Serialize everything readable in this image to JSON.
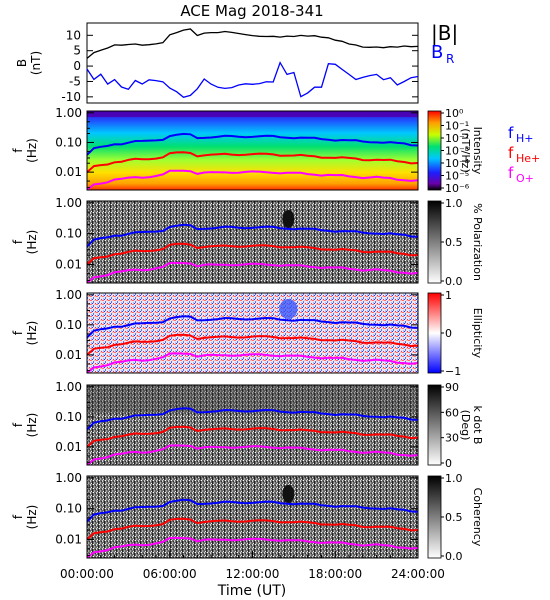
{
  "title": "ACE Mag 2018-341",
  "xlabel": "Time (UT)",
  "xticks": [
    "00:00:00",
    "06:00:00",
    "12:00:00",
    "18:00:00",
    "24:00:00"
  ],
  "colors": {
    "B": "#000000",
    "BR": "#0000ff",
    "fH": "#0000ff",
    "fHe": "#ff0000",
    "fO": "#ff00ff"
  },
  "chart_data": [
    {
      "type": "line",
      "panel": "magnetic field",
      "ylabel_line1": "B",
      "ylabel_line2": "(nT)",
      "ylim": [
        -12,
        14
      ],
      "yticks": [
        -10,
        -5,
        0,
        5,
        10
      ],
      "x_hours": [
        0,
        0.5,
        1,
        1.5,
        2,
        2.5,
        3,
        3.5,
        4,
        4.5,
        5,
        5.5,
        6,
        6.5,
        7,
        7.5,
        8,
        8.5,
        9,
        9.5,
        10,
        10.5,
        11,
        11.5,
        12,
        12.5,
        13,
        13.5,
        14,
        14.5,
        15,
        15.5,
        16,
        16.5,
        17,
        17.5,
        18,
        18.5,
        19,
        19.5,
        20,
        20.5,
        21,
        21.5,
        22,
        22.5,
        23,
        23.5,
        24
      ],
      "series": [
        {
          "name": "|B|",
          "values": [
            2.5,
            4.0,
            4.5,
            5.0,
            6.0,
            6.0,
            6.5,
            7.0,
            7.0,
            7.5,
            8.0,
            8.5,
            11.0,
            11.5,
            12.0,
            12.0,
            9.5,
            10.0,
            10.0,
            10.0,
            10.5,
            10.5,
            10.5,
            10.5,
            10.5,
            10.5,
            10.5,
            10.5,
            10.0,
            10.0,
            9.5,
            9.5,
            9.0,
            9.0,
            8.5,
            8.5,
            8.0,
            8.0,
            7.5,
            7.5,
            7.0,
            7.0,
            7.0,
            6.5,
            6.5,
            6.0,
            6.0,
            5.5,
            5.5
          ]
        },
        {
          "name": "B",
          "label_sub": "R",
          "values": [
            -1.0,
            -4.0,
            -2.0,
            -5.0,
            -3.5,
            -6.0,
            -7.0,
            -4.5,
            -6.0,
            -5.0,
            -5.5,
            -6.0,
            -8.0,
            -9.0,
            -10.5,
            -9.5,
            -7.0,
            -3.5,
            -5.0,
            -6.0,
            -6.5,
            -6.5,
            -6.0,
            -6.0,
            -6.5,
            -6.5,
            -6.0,
            -6.0,
            0.5,
            -3.0,
            -2.0,
            -9.5,
            -8.0,
            -6.0,
            -6.0,
            1.5,
            1.0,
            -1.0,
            -3.0,
            -5.0,
            -4.5,
            -4.0,
            -3.5,
            -5.0,
            -4.0,
            -6.0,
            -4.5,
            -3.0,
            -2.5
          ]
        }
      ]
    },
    {
      "type": "heatmap",
      "panel": "intensity",
      "ylabel_line1": "f",
      "ylabel_line2": "(Hz)",
      "yscale": "log",
      "ylim": [
        0.003,
        1.1
      ],
      "yticks": [
        "1.00",
        "0.10",
        "0.01"
      ],
      "colorbar_label_line1": "Intensity",
      "colorbar_label_line2": "(nT²/Hz)",
      "colorbar_ticks": [
        "10⁰",
        "10⁻¹",
        "10⁻²",
        "10⁻³",
        "10⁻⁴",
        "10⁻⁵",
        "10⁻⁶"
      ],
      "colormap": "rainbow",
      "legend": [
        "f",
        "f",
        "f"
      ],
      "legend_subs": [
        "H+",
        "He+",
        "O+"
      ]
    },
    {
      "type": "heatmap",
      "panel": "polarization",
      "ylabel_line1": "f",
      "ylabel_line2": "(Hz)",
      "yscale": "log",
      "yticks": [
        "1.00",
        "0.10",
        "0.01"
      ],
      "colorbar_label": "% Polarization",
      "colorbar_ticks": [
        "1.0",
        "0.5",
        "0.0"
      ],
      "colormap": "gray"
    },
    {
      "type": "heatmap",
      "panel": "ellipticity",
      "ylabel_line1": "f",
      "ylabel_line2": "(Hz)",
      "yscale": "log",
      "yticks": [
        "1.00",
        "0.10",
        "0.01"
      ],
      "colorbar_label": "Ellipticity",
      "colorbar_ticks": [
        "1",
        "0",
        "−1"
      ],
      "colormap": "blue-white-red"
    },
    {
      "type": "heatmap",
      "panel": "k dot B",
      "ylabel_line1": "f",
      "ylabel_line2": "(Hz)",
      "yscale": "log",
      "yticks": [
        "1.00",
        "0.10",
        "0.01"
      ],
      "colorbar_label_line1": "k dot B",
      "colorbar_label_line2": "(Deg)",
      "colorbar_ticks": [
        "90",
        "60",
        "30",
        "0"
      ],
      "colormap": "gray"
    },
    {
      "type": "heatmap",
      "panel": "coherency",
      "ylabel_line1": "f",
      "ylabel_line2": "(Hz)",
      "yscale": "log",
      "yticks": [
        "1.00",
        "0.10",
        "0.01"
      ],
      "colorbar_label": "Coherency",
      "colorbar_ticks": [
        "1.0",
        "0.5",
        "0.0"
      ],
      "colormap": "gray"
    },
    {
      "type": "line",
      "panel": "ion cyclotron frequencies (overlaid on panels 2–6)",
      "yscale": "log",
      "x_hours": [
        0,
        0.5,
        1,
        1.5,
        2,
        2.5,
        3,
        3.5,
        4,
        4.5,
        5,
        5.5,
        6,
        6.5,
        7,
        7.5,
        8,
        8.5,
        9,
        9.5,
        10,
        10.5,
        11,
        11.5,
        12,
        12.5,
        13,
        13.5,
        14,
        14.5,
        15,
        15.5,
        16,
        16.5,
        17,
        17.5,
        18,
        18.5,
        19,
        19.5,
        20,
        20.5,
        21,
        21.5,
        22,
        22.5,
        23,
        23.5,
        24
      ],
      "series": [
        {
          "name": "f H+",
          "values": [
            0.038,
            0.061,
            0.068,
            0.076,
            0.091,
            0.091,
            0.099,
            0.107,
            0.107,
            0.114,
            0.122,
            0.13,
            0.168,
            0.175,
            0.183,
            0.183,
            0.145,
            0.152,
            0.152,
            0.152,
            0.16,
            0.16,
            0.16,
            0.16,
            0.16,
            0.16,
            0.16,
            0.16,
            0.152,
            0.152,
            0.145,
            0.145,
            0.137,
            0.137,
            0.13,
            0.13,
            0.122,
            0.122,
            0.114,
            0.114,
            0.107,
            0.107,
            0.107,
            0.099,
            0.099,
            0.091,
            0.091,
            0.084,
            0.084
          ]
        },
        {
          "name": "f He+",
          "values": [
            0.0095,
            0.0152,
            0.0171,
            0.019,
            0.0228,
            0.0228,
            0.0247,
            0.0266,
            0.0266,
            0.0285,
            0.0304,
            0.0323,
            0.0419,
            0.0438,
            0.0457,
            0.0457,
            0.0361,
            0.038,
            0.038,
            0.038,
            0.0399,
            0.0399,
            0.0399,
            0.0399,
            0.0399,
            0.0399,
            0.0399,
            0.0399,
            0.038,
            0.038,
            0.0361,
            0.0361,
            0.0342,
            0.0342,
            0.0323,
            0.0323,
            0.0304,
            0.0304,
            0.0285,
            0.0285,
            0.0266,
            0.0266,
            0.0266,
            0.0247,
            0.0247,
            0.0228,
            0.0228,
            0.0209,
            0.0209
          ]
        },
        {
          "name": "f O+",
          "values": [
            0.0024,
            0.0038,
            0.0043,
            0.0048,
            0.0057,
            0.0057,
            0.0062,
            0.0067,
            0.0067,
            0.0071,
            0.0076,
            0.0081,
            0.0105,
            0.0109,
            0.0114,
            0.0114,
            0.009,
            0.0095,
            0.0095,
            0.0095,
            0.01,
            0.01,
            0.01,
            0.01,
            0.01,
            0.01,
            0.01,
            0.01,
            0.0095,
            0.0095,
            0.009,
            0.009,
            0.0086,
            0.0086,
            0.0081,
            0.0081,
            0.0076,
            0.0076,
            0.0071,
            0.0071,
            0.0067,
            0.0067,
            0.0067,
            0.0062,
            0.0062,
            0.0057,
            0.0057,
            0.0052,
            0.0052
          ]
        }
      ]
    }
  ]
}
